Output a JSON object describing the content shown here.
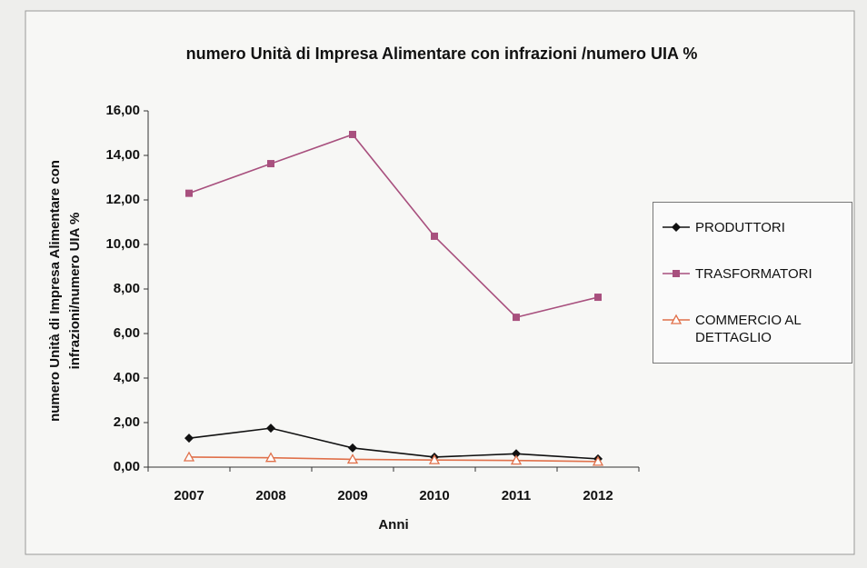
{
  "chart_data": {
    "type": "line",
    "title": "numero Unità di Impresa Alimentare con infrazioni /numero UIA %",
    "x_label": "Anni",
    "y_label": "numero Unità di Impresa Alimentare con infrazioni/numero UIA %",
    "categories": [
      "2007",
      "2008",
      "2009",
      "2010",
      "2011",
      "2012"
    ],
    "series": [
      {
        "name": "PRODUTTORI",
        "color": "#111111",
        "marker": "diamond",
        "values": [
          1.3,
          1.75,
          0.86,
          0.45,
          0.6,
          0.37
        ]
      },
      {
        "name": "TRASFORMATORI",
        "color": "#a8507e",
        "marker": "square",
        "values": [
          12.3,
          13.63,
          14.94,
          10.37,
          6.73,
          7.63
        ]
      },
      {
        "name": "COMMERCIO AL DETTAGLIO",
        "color": "#e0704a",
        "marker": "triangle",
        "values": [
          0.45,
          0.42,
          0.35,
          0.32,
          0.3,
          0.25
        ]
      }
    ],
    "ylim": [
      0,
      16
    ],
    "yticks": [
      {
        "value": 0,
        "label": "0,00"
      },
      {
        "value": 2,
        "label": "2,00"
      },
      {
        "value": 4,
        "label": "4,00"
      },
      {
        "value": 6,
        "label": "6,00"
      },
      {
        "value": 8,
        "label": "8,00"
      },
      {
        "value": 10,
        "label": "10,00"
      },
      {
        "value": 12,
        "label": "12,00"
      },
      {
        "value": 14,
        "label": "14,00"
      },
      {
        "value": 16,
        "label": "16,00"
      }
    ],
    "legend": "right"
  }
}
